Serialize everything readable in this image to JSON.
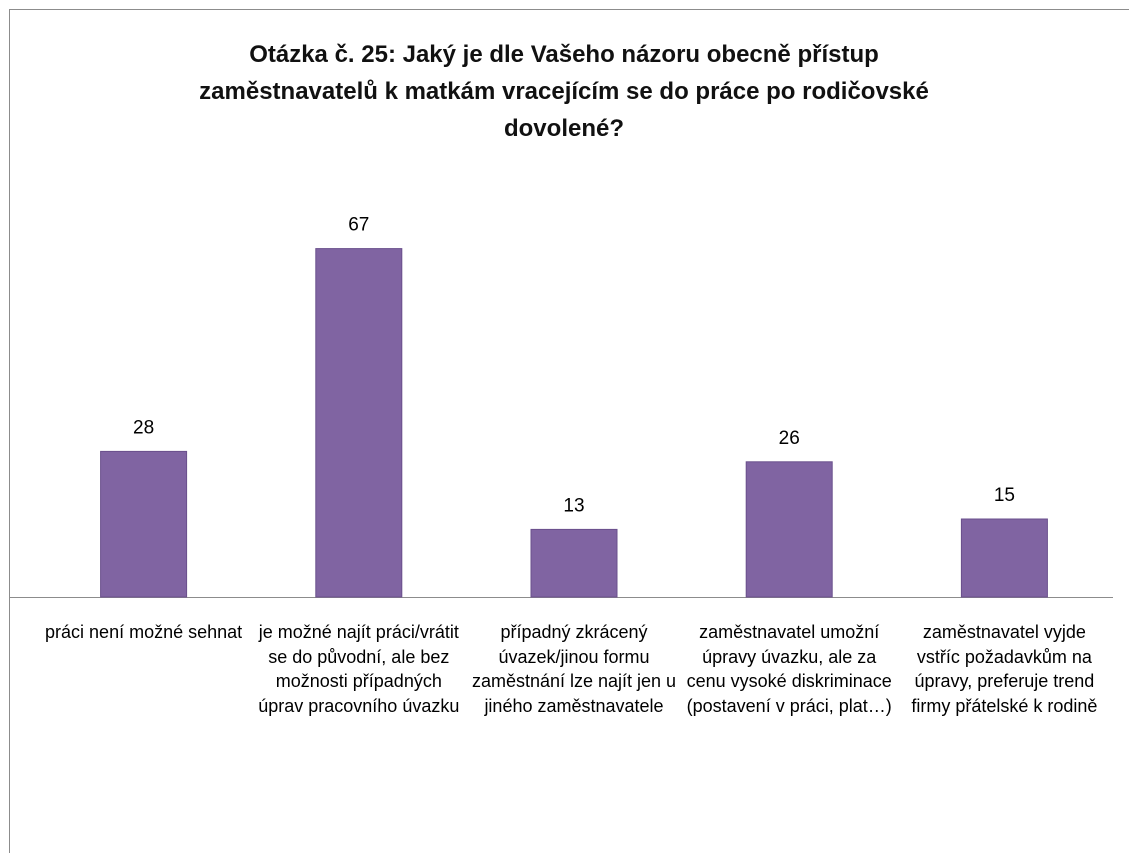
{
  "chart_data": {
    "type": "bar",
    "title": "Otázka č. 25: Jaký je dle Vašeho názoru obecně přístup zaměstnavatelů k matkám vracejícím se do práce po rodičovské dovolené?",
    "categories": [
      "práci není možné sehnat",
      "je možné najít práci/vrátit se do původní, ale bez možnosti případných úprav pracovního úvazku",
      "případný zkrácený úvazek/jinou formu zaměstnání lze najít jen u jiného zaměstnavatele",
      "zaměstnavatel umožní úpravy úvazku, ale za cenu vysoké diskriminace (postavení v práci, plat…)",
      "zaměstnavatel vyjde vstříc požadavkům na úpravy, preferuje trend firmy přátelské k rodině"
    ],
    "values": [
      28,
      67,
      13,
      26,
      15
    ],
    "color": "#8064a2",
    "ylim": [
      0,
      70
    ]
  }
}
